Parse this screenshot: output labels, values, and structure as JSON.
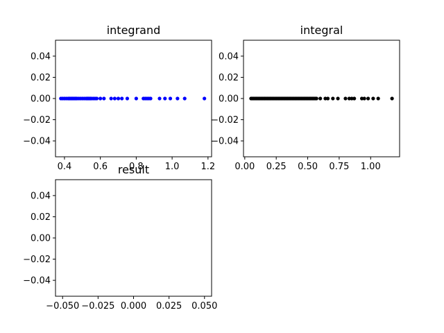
{
  "chart_data": [
    {
      "type": "scatter",
      "title": "integrand",
      "xlabel": "",
      "ylabel": "",
      "xlim": [
        0.35,
        1.22
      ],
      "ylim": [
        -0.055,
        0.055
      ],
      "xticks": [
        0.4,
        0.6,
        0.8,
        1.0,
        1.2
      ],
      "xtick_labels": [
        "0.4",
        "0.6",
        "0.8",
        "1.0",
        "1.2"
      ],
      "yticks": [
        0.04,
        0.02,
        0.0,
        -0.02,
        -0.04
      ],
      "ytick_labels": [
        "0.04",
        "0.02",
        "0.00",
        "−0.02",
        "−0.04"
      ],
      "grid": false,
      "color": "#0000ff",
      "x": [
        0.38,
        0.39,
        0.4,
        0.41,
        0.42,
        0.425,
        0.43,
        0.435,
        0.44,
        0.445,
        0.45,
        0.455,
        0.46,
        0.465,
        0.47,
        0.48,
        0.49,
        0.5,
        0.51,
        0.52,
        0.525,
        0.53,
        0.535,
        0.54,
        0.545,
        0.55,
        0.56,
        0.57,
        0.58,
        0.6,
        0.62,
        0.66,
        0.68,
        0.7,
        0.72,
        0.75,
        0.8,
        0.84,
        0.85,
        0.86,
        0.87,
        0.88,
        0.93,
        0.96,
        0.99,
        1.03,
        1.07,
        1.18
      ],
      "y": [
        0,
        0,
        0,
        0,
        0,
        0,
        0,
        0,
        0,
        0,
        0,
        0,
        0,
        0,
        0,
        0,
        0,
        0,
        0,
        0,
        0,
        0,
        0,
        0,
        0,
        0,
        0,
        0,
        0,
        0,
        0,
        0,
        0,
        0,
        0,
        0,
        0,
        0,
        0,
        0,
        0,
        0,
        0,
        0,
        0,
        0,
        0,
        0
      ]
    },
    {
      "type": "scatter",
      "title": "integral",
      "xlabel": "",
      "ylabel": "",
      "xlim": [
        -0.01,
        1.23
      ],
      "ylim": [
        -0.055,
        0.055
      ],
      "xticks": [
        0.0,
        0.25,
        0.5,
        0.75,
        1.0
      ],
      "xtick_labels": [
        "0.00",
        "0.25",
        "0.50",
        "0.75",
        "1.00"
      ],
      "yticks": [
        0.04,
        0.02,
        0.0,
        -0.02,
        -0.04
      ],
      "ytick_labels": [
        "0.04",
        "0.02",
        "0.00",
        "−0.02",
        "−0.04"
      ],
      "grid": false,
      "color": "#000000",
      "x": [
        0.05,
        0.06,
        0.07,
        0.08,
        0.09,
        0.1,
        0.11,
        0.12,
        0.13,
        0.14,
        0.15,
        0.16,
        0.17,
        0.18,
        0.19,
        0.2,
        0.21,
        0.22,
        0.23,
        0.24,
        0.25,
        0.26,
        0.27,
        0.28,
        0.29,
        0.3,
        0.31,
        0.32,
        0.33,
        0.34,
        0.35,
        0.36,
        0.37,
        0.38,
        0.39,
        0.4,
        0.41,
        0.42,
        0.43,
        0.44,
        0.45,
        0.46,
        0.47,
        0.48,
        0.49,
        0.5,
        0.51,
        0.52,
        0.53,
        0.54,
        0.55,
        0.56,
        0.57,
        0.6,
        0.64,
        0.66,
        0.7,
        0.74,
        0.8,
        0.83,
        0.85,
        0.87,
        0.93,
        0.95,
        0.98,
        1.02,
        1.06,
        1.17
      ],
      "y": [
        0,
        0,
        0,
        0,
        0,
        0,
        0,
        0,
        0,
        0,
        0,
        0,
        0,
        0,
        0,
        0,
        0,
        0,
        0,
        0,
        0,
        0,
        0,
        0,
        0,
        0,
        0,
        0,
        0,
        0,
        0,
        0,
        0,
        0,
        0,
        0,
        0,
        0,
        0,
        0,
        0,
        0,
        0,
        0,
        0,
        0,
        0,
        0,
        0,
        0,
        0,
        0,
        0,
        0,
        0,
        0,
        0,
        0,
        0,
        0,
        0,
        0,
        0,
        0,
        0,
        0,
        0,
        0
      ]
    },
    {
      "type": "scatter",
      "title": "result",
      "xlabel": "",
      "ylabel": "",
      "xlim": [
        -0.055,
        0.055
      ],
      "ylim": [
        -0.055,
        0.055
      ],
      "xticks": [
        -0.05,
        -0.025,
        0.0,
        0.025,
        0.05
      ],
      "xtick_labels": [
        "−0.050",
        "−0.025",
        "0.000",
        "0.025",
        "0.050"
      ],
      "yticks": [
        0.04,
        0.02,
        0.0,
        -0.02,
        -0.04
      ],
      "ytick_labels": [
        "0.04",
        "0.02",
        "0.00",
        "−0.02",
        "−0.04"
      ],
      "grid": false,
      "color": "#000000",
      "x": [],
      "y": []
    }
  ]
}
